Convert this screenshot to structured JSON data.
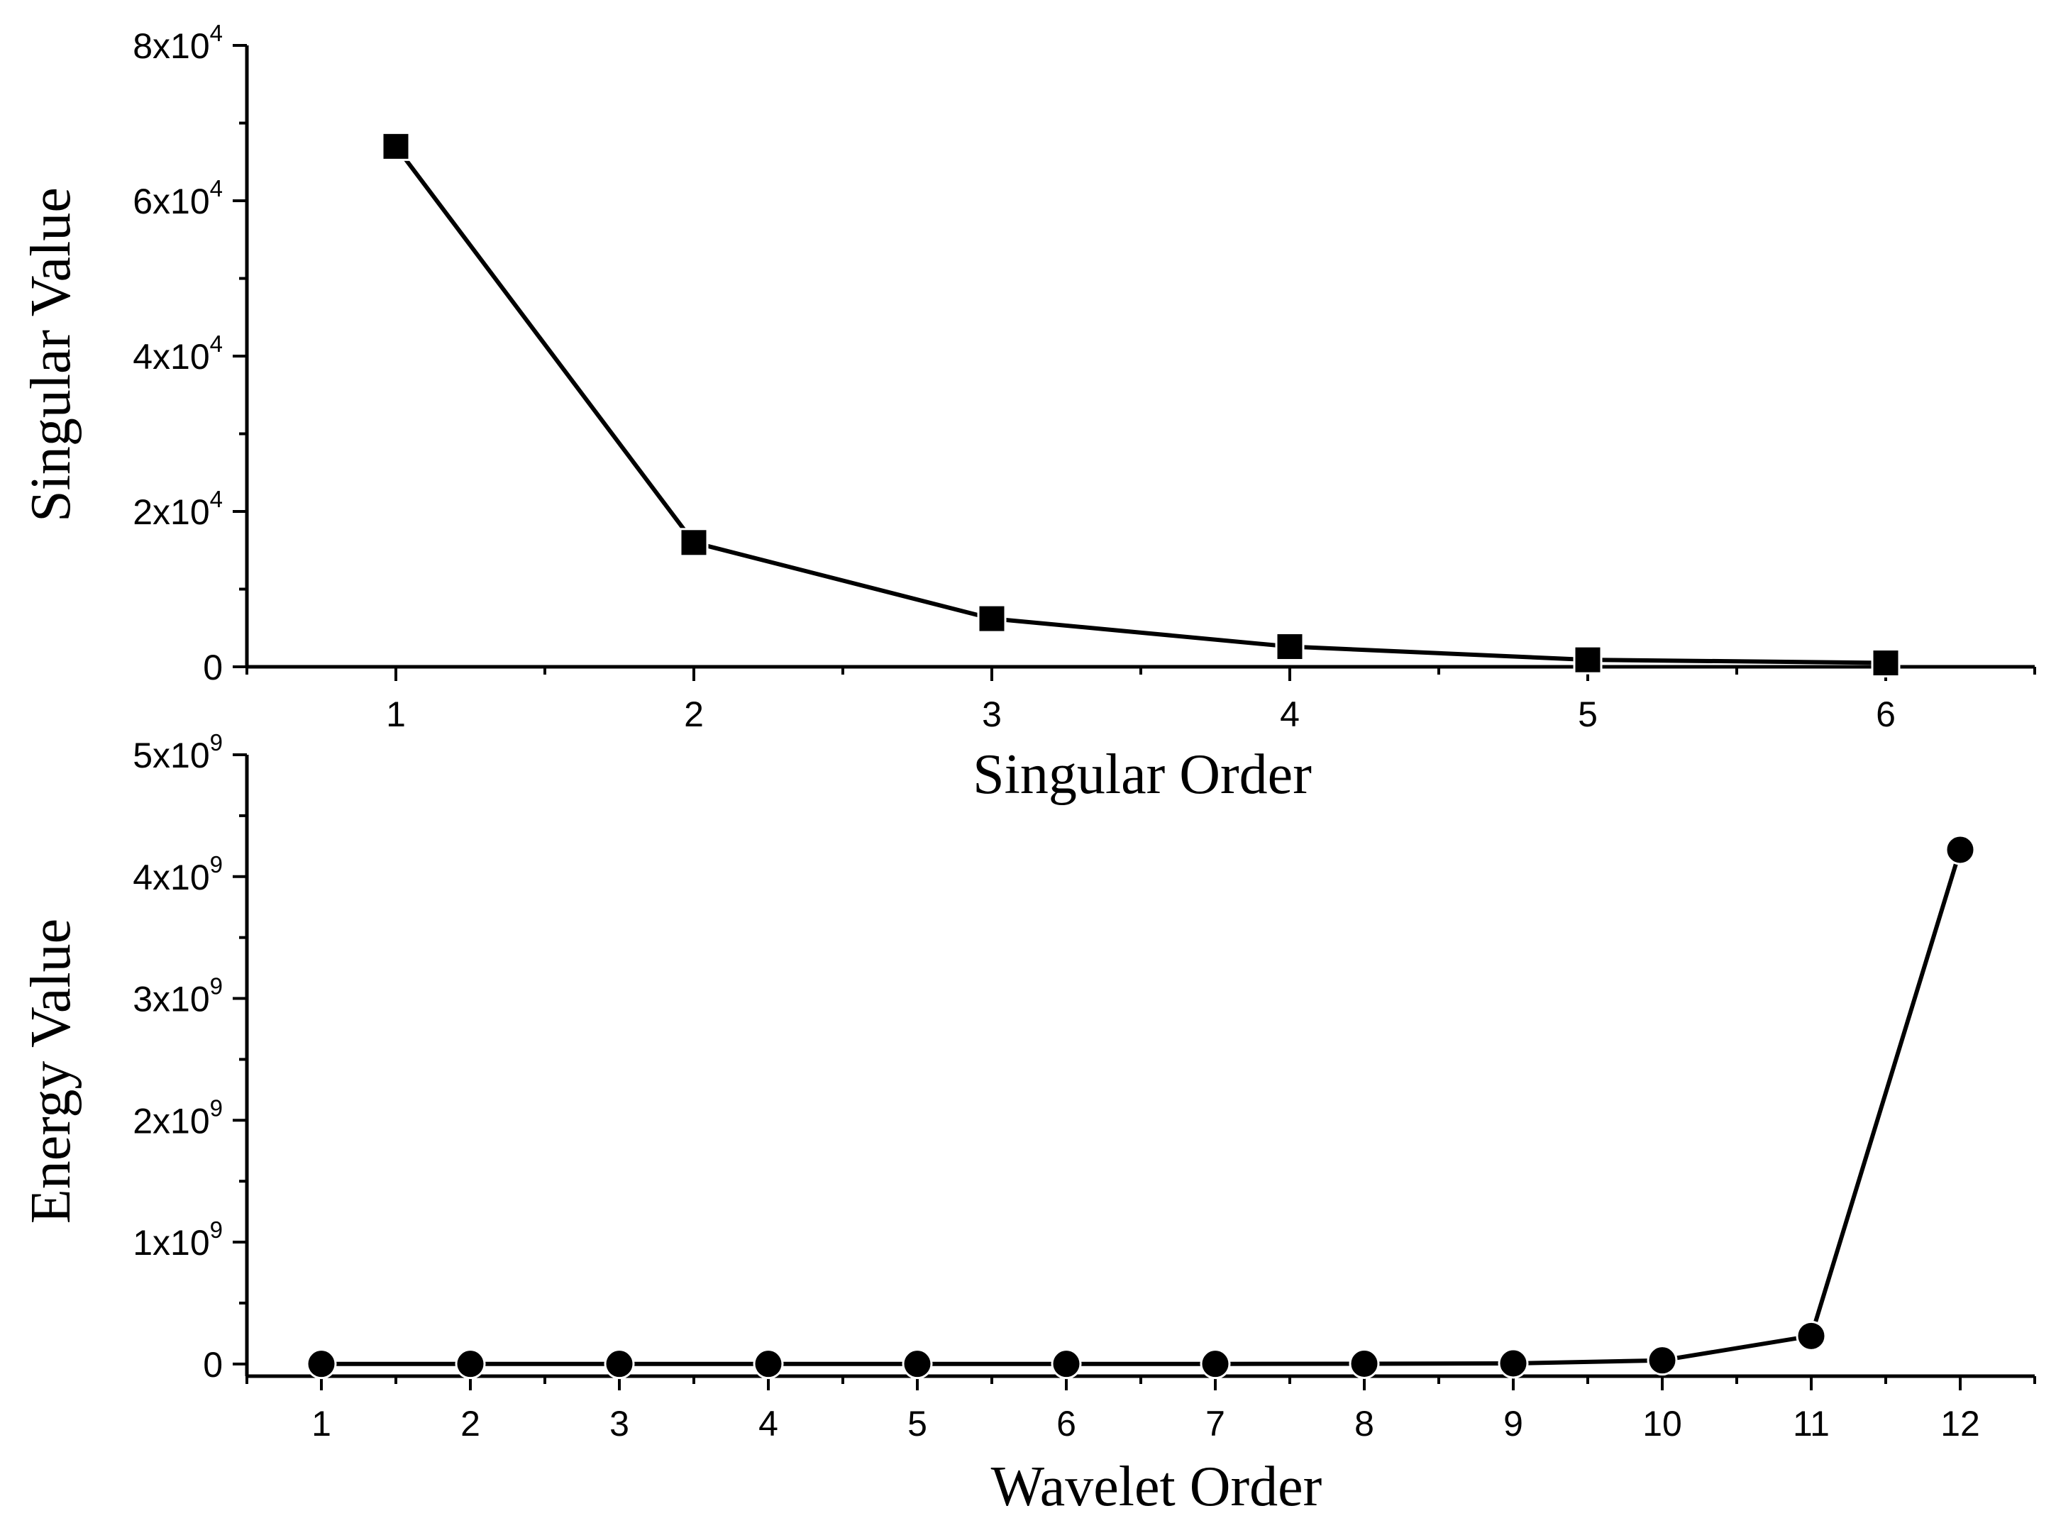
{
  "chart_data": [
    {
      "type": "line",
      "marker": "square",
      "xlabel": "Singular Order",
      "ylabel": "Singular Value",
      "x": [
        1,
        2,
        3,
        4,
        5,
        6
      ],
      "series": [
        {
          "values": [
            67000,
            16000,
            6200,
            2600,
            900,
            500
          ]
        }
      ],
      "xlim": [
        0.5,
        6.5
      ],
      "ylim": [
        0,
        80000
      ],
      "xticks": [
        1,
        2,
        3,
        4,
        5,
        6
      ],
      "yticks": [
        {
          "value": 0,
          "base": "0",
          "exp": ""
        },
        {
          "value": 20000,
          "base": "2x10",
          "exp": "4"
        },
        {
          "value": 40000,
          "base": "4x10",
          "exp": "4"
        },
        {
          "value": 60000,
          "base": "6x10",
          "exp": "4"
        },
        {
          "value": 80000,
          "base": "8x10",
          "exp": "4"
        }
      ],
      "color": "#000000"
    },
    {
      "type": "line",
      "marker": "circle",
      "xlabel": "Wavelet Order",
      "ylabel": "Energy Value",
      "x": [
        1,
        2,
        3,
        4,
        5,
        6,
        7,
        8,
        9,
        10,
        11,
        12
      ],
      "series": [
        {
          "values": [
            1000000,
            1000000,
            1000000,
            1000000,
            1000000,
            1000000,
            1000000,
            2000000,
            5000000,
            30000000,
            230000000,
            4220000000
          ]
        }
      ],
      "xlim": [
        0.5,
        12.5
      ],
      "ylim": [
        -100000000,
        5000000000
      ],
      "xticks": [
        1,
        2,
        3,
        4,
        5,
        6,
        7,
        8,
        9,
        10,
        11,
        12
      ],
      "yticks": [
        {
          "value": 0,
          "base": "0",
          "exp": ""
        },
        {
          "value": 1000000000,
          "base": "1x10",
          "exp": "9"
        },
        {
          "value": 2000000000,
          "base": "2x10",
          "exp": "9"
        },
        {
          "value": 3000000000,
          "base": "3x10",
          "exp": "9"
        },
        {
          "value": 4000000000,
          "base": "4x10",
          "exp": "9"
        },
        {
          "value": 5000000000,
          "base": "5x10",
          "exp": "9"
        }
      ],
      "color": "#000000"
    }
  ]
}
